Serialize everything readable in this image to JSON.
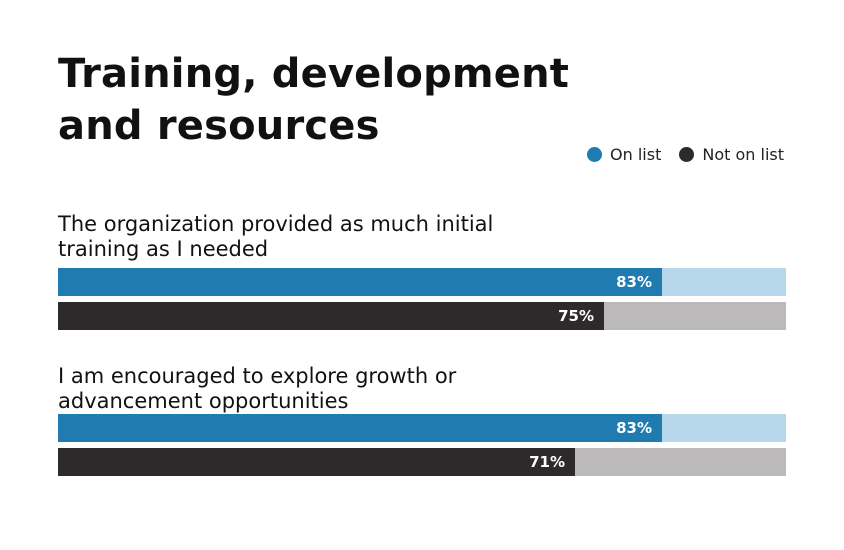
{
  "title": "Training, development and resources",
  "legend": {
    "on_list": {
      "label": "On list",
      "color": "#1f7bb0"
    },
    "not_on_list": {
      "label": "Not on list",
      "color": "#2e2a2b"
    }
  },
  "chart_data": {
    "type": "bar",
    "orientation": "horizontal",
    "title": "Training, development and resources",
    "categories": [
      "The organization provided as much initial training as I needed",
      "I am encouraged to explore growth or advancement opportunities"
    ],
    "series": [
      {
        "name": "On list",
        "color": "#1f7bb0",
        "track_color": "#b6d8ea",
        "values": [
          83,
          83
        ]
      },
      {
        "name": "Not on list",
        "color": "#2e2a2b",
        "track_color": "#bbb9ba",
        "values": [
          75,
          71
        ]
      }
    ],
    "value_labels": [
      [
        "83%",
        "75%"
      ],
      [
        "83%",
        "71%"
      ]
    ],
    "xlim": [
      0,
      100
    ],
    "unit": "%",
    "legend_position": "top-right",
    "grid": false
  }
}
